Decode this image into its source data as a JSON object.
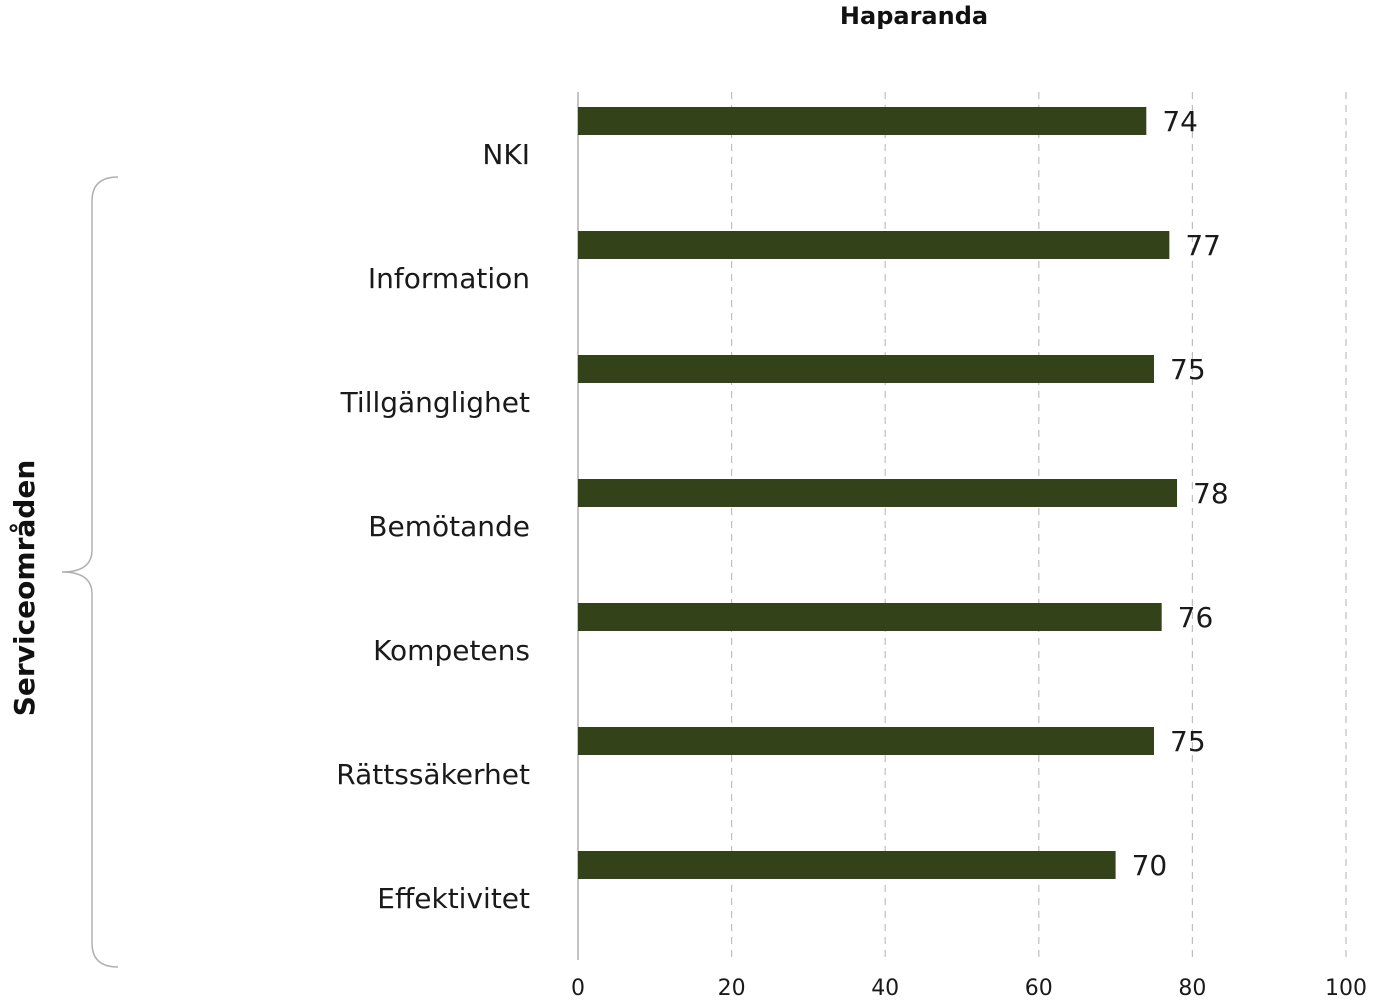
{
  "chart_data": {
    "type": "bar",
    "orientation": "horizontal",
    "title": "Haparanda",
    "categories": [
      "NKI",
      "Information",
      "Tillgänglighet",
      "Bemötande",
      "Kompetens",
      "Rättssäkerhet",
      "Effektivitet"
    ],
    "values": [
      74,
      77,
      75,
      78,
      76,
      75,
      70
    ],
    "value_labels": [
      "74",
      "77",
      "75",
      "78",
      "76",
      "75",
      "70"
    ],
    "xlim": [
      0,
      100
    ],
    "xticks": [
      0,
      20,
      40,
      60,
      80,
      100
    ],
    "xtick_labels": [
      "0",
      "20",
      "40",
      "60",
      "80",
      "100"
    ],
    "grid": "vertical dashed",
    "group_bracket": {
      "label": "Serviceområden",
      "categories": [
        "Information",
        "Tillgänglighet",
        "Bemötande",
        "Kompetens",
        "Rättssäkerhet",
        "Effektivitet"
      ]
    },
    "colors": {
      "bar": "#344219",
      "grid": "#bfbfbf",
      "axis": "#b0b0b0",
      "bracket": "#b0b0b0"
    }
  }
}
